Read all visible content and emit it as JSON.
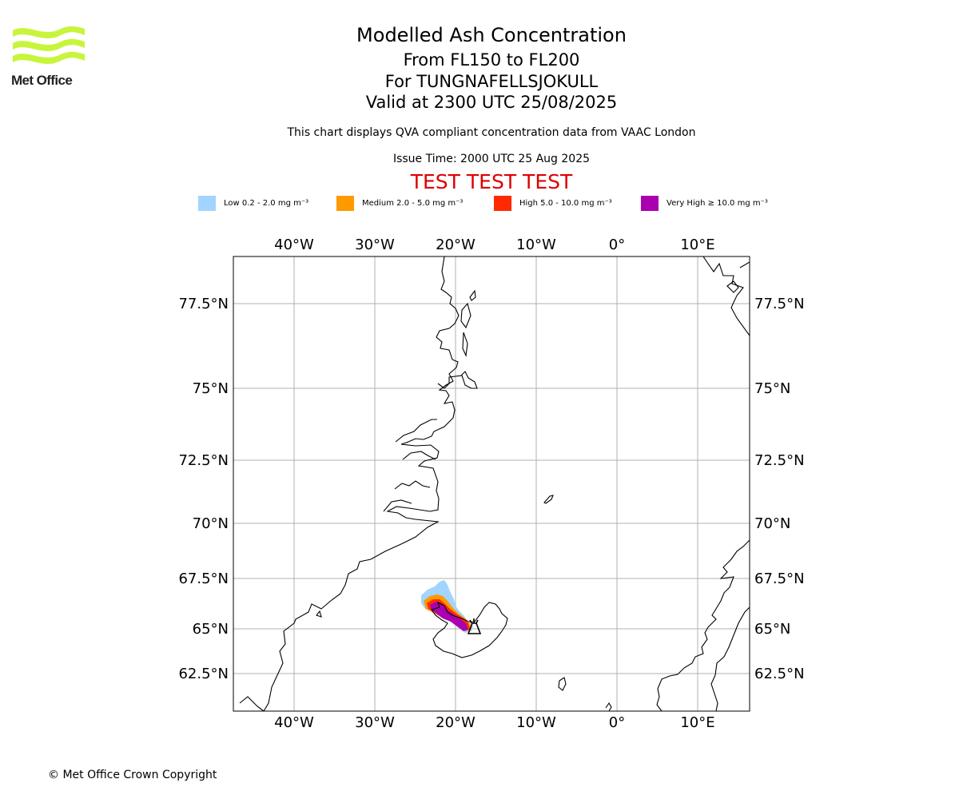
{
  "brand": {
    "name": "Met Office",
    "logo_color": "#c8f53b"
  },
  "title": {
    "main": "Modelled Ash Concentration",
    "levels": "From FL150 to FL200",
    "volcano": "For TUNGNAFELLSJOKULL",
    "valid": "Valid at 2300 UTC 25/08/2025"
  },
  "subtitle": "This chart displays QVA compliant concentration data from VAAC London",
  "issue_time": "Issue Time: 2000 UTC 25 Aug 2025",
  "test_banner": "TEST TEST TEST",
  "legend": [
    {
      "label": "Low 0.2 - 2.0 mg m⁻³",
      "color": "#a2d4ff"
    },
    {
      "label": "Medium 2.0 - 5.0 mg m⁻³",
      "color": "#ff9900"
    },
    {
      "label": "High 5.0 - 10.0 mg m⁻³",
      "color": "#ff2a00"
    },
    {
      "label": "Very High  ≥  10.0 mg m⁻³",
      "color": "#aa00b0"
    }
  ],
  "map": {
    "lon_ticks": [
      "40°W",
      "30°W",
      "20°W",
      "10°W",
      "0°",
      "10°E"
    ],
    "lat_ticks": [
      "77.5°N",
      "75°N",
      "72.5°N",
      "70°N",
      "67.5°N",
      "65°N",
      "62.5°N"
    ],
    "lon_values": [
      -40,
      -30,
      -20,
      -10,
      0,
      10
    ],
    "lat_values": [
      77.5,
      75,
      72.5,
      70,
      67.5,
      65,
      62.5
    ],
    "grid": true,
    "coastline_color": "#000000",
    "grid_color": "#b0b0b0"
  },
  "copyright": "© Met Office Crown Copyright"
}
